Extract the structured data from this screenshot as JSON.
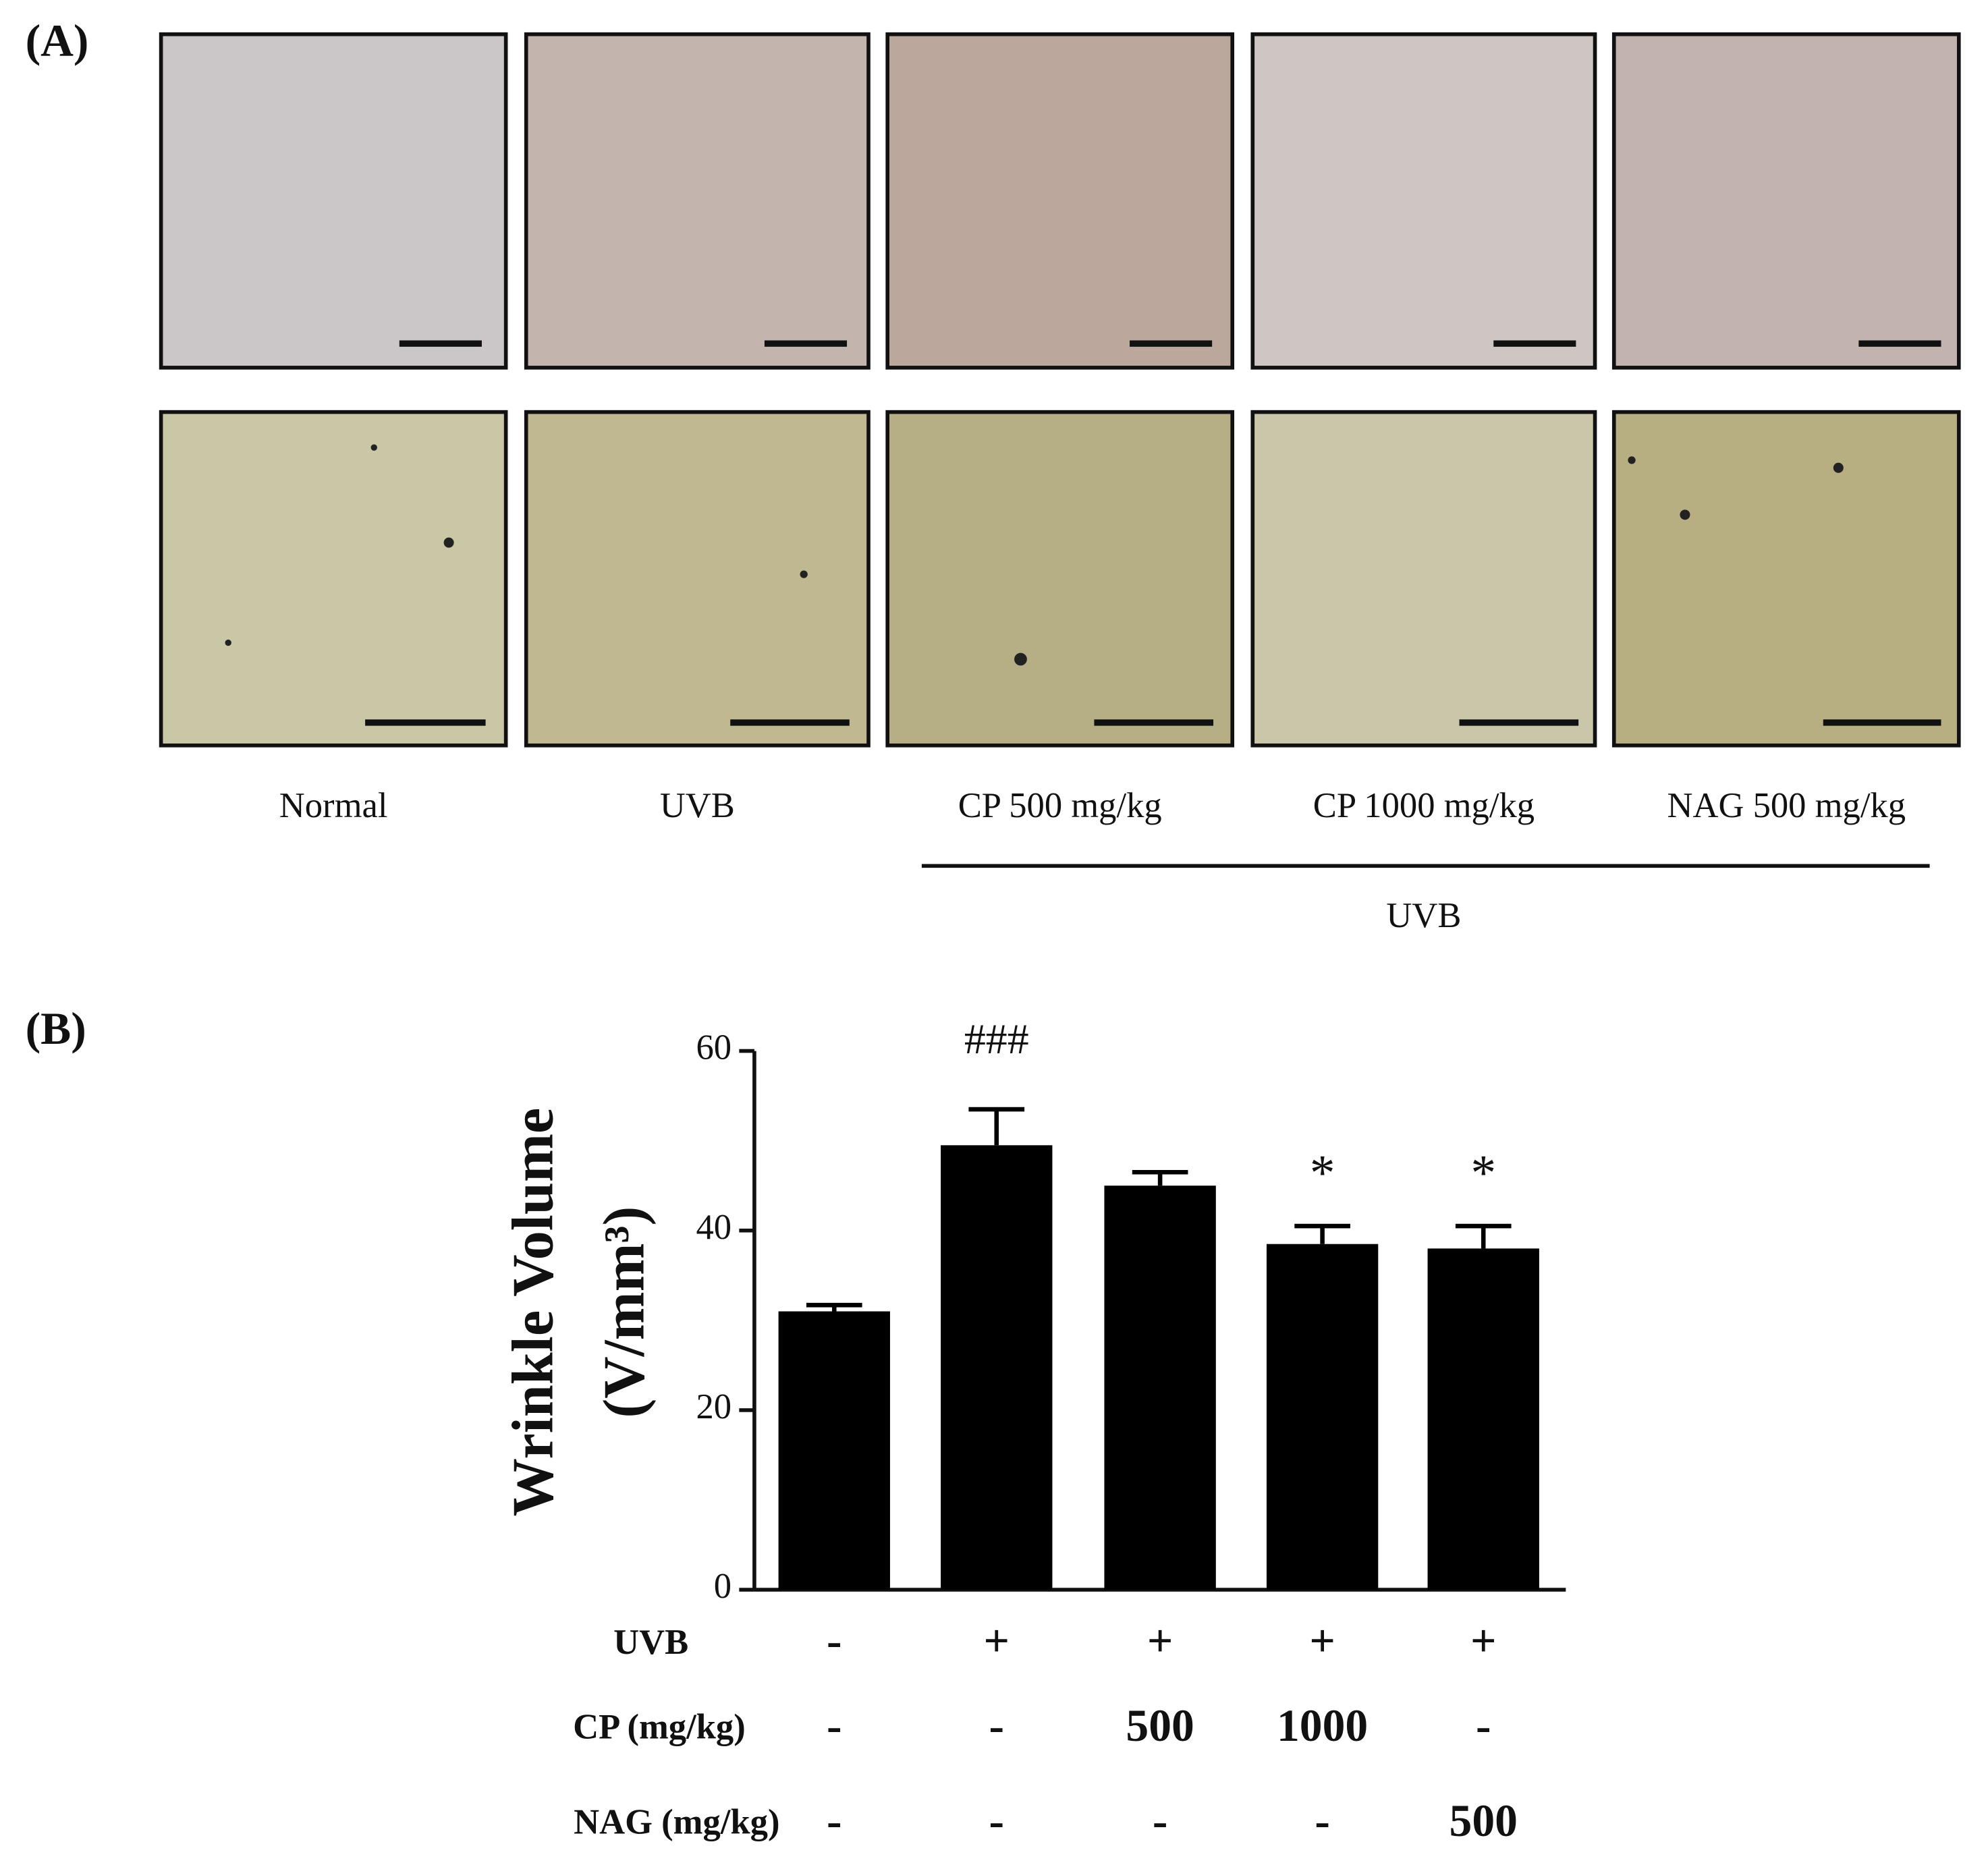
{
  "panel_a": {
    "label": "(A)",
    "captions": [
      "Normal",
      "UVB",
      "CP 500 mg/kg",
      "CP 1000 mg/kg",
      "NAG 500 mg/kg"
    ],
    "group_label": "UVB"
  },
  "panel_b_label": "(B)",
  "chart_data": {
    "type": "bar",
    "ylabel": "Wrinkle Volume",
    "ylabel_unit": "(V/mm³)",
    "values": [
      31,
      49.5,
      45,
      38.5,
      38
    ],
    "errors": [
      0.7,
      4,
      1.5,
      2,
      2.5
    ],
    "color": "#000000",
    "ylim": [
      0,
      60
    ],
    "yticks": [
      0,
      20,
      40,
      60
    ],
    "annotations": [
      {
        "index": 1,
        "text": "###"
      },
      {
        "index": 3,
        "text": "*"
      },
      {
        "index": 4,
        "text": "*"
      }
    ],
    "treatment_rows": [
      {
        "name": "UVB",
        "values": [
          "-",
          "+",
          "+",
          "+",
          "+"
        ]
      },
      {
        "name": "CP (mg/kg)",
        "values": [
          "-",
          "-",
          "500",
          "1000",
          "-"
        ]
      },
      {
        "name": "NAG (mg/kg)",
        "values": [
          "-",
          "-",
          "-",
          "-",
          "500"
        ]
      }
    ]
  }
}
